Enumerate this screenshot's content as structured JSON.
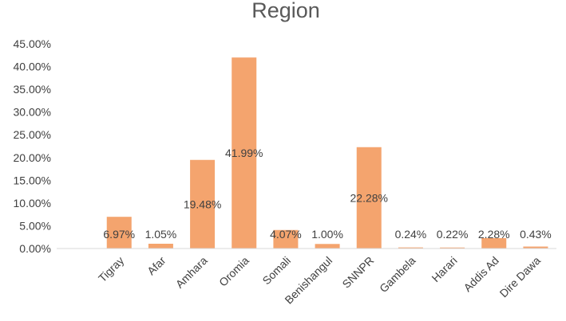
{
  "chart_data": {
    "type": "bar",
    "title": "Region",
    "xlabel": "",
    "ylabel": "",
    "ylim": [
      0,
      45
    ],
    "yticks": [
      "0.00%",
      "5.00%",
      "10.00%",
      "15.00%",
      "20.00%",
      "25.00%",
      "30.00%",
      "35.00%",
      "40.00%",
      "45.00%"
    ],
    "grid": false,
    "legend": "none",
    "bar_color": "#F4A46E",
    "categories": [
      "",
      "Tigray",
      "Afar",
      "Amhara",
      "Oromia",
      "Somali",
      "Benishangul",
      "SNNPR",
      "Gambela",
      "Harari",
      "Addis Ad",
      "Dire Dawa"
    ],
    "values": [
      0,
      6.97,
      1.05,
      19.48,
      41.99,
      4.07,
      1.0,
      22.28,
      0.24,
      0.22,
      2.28,
      0.43
    ],
    "data_labels": [
      "",
      "6.97%",
      "1.05%",
      "19.48%",
      "41.99%",
      "4.07%",
      "1.00%",
      "22.28%",
      "0.24%",
      "0.22%",
      "2.28%",
      "0.43%"
    ]
  }
}
